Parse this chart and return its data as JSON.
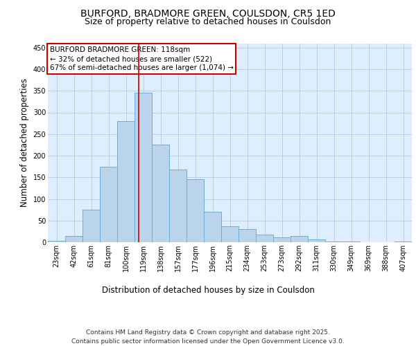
{
  "title_line1": "BURFORD, BRADMORE GREEN, COULSDON, CR5 1ED",
  "title_line2": "Size of property relative to detached houses in Coulsdon",
  "xlabel": "Distribution of detached houses by size in Coulsdon",
  "ylabel": "Number of detached properties",
  "categories": [
    "23sqm",
    "42sqm",
    "61sqm",
    "81sqm",
    "100sqm",
    "119sqm",
    "138sqm",
    "157sqm",
    "177sqm",
    "196sqm",
    "215sqm",
    "234sqm",
    "253sqm",
    "273sqm",
    "292sqm",
    "311sqm",
    "330sqm",
    "349sqm",
    "369sqm",
    "388sqm",
    "407sqm"
  ],
  "values": [
    3,
    14,
    76,
    175,
    280,
    345,
    225,
    168,
    145,
    70,
    37,
    30,
    17,
    11,
    14,
    6,
    1,
    1,
    0,
    0,
    1
  ],
  "bar_color": "#bad4ec",
  "bar_edge_color": "#6aaed6",
  "background_color": "#ffffff",
  "plot_bg_color": "#ddeeff",
  "grid_color": "#b8cfe8",
  "annotation_text": "BURFORD BRADMORE GREEN: 118sqm\n← 32% of detached houses are smaller (522)\n67% of semi-detached houses are larger (1,074) →",
  "annotation_box_color": "#ffffff",
  "annotation_box_edge_color": "#cc0000",
  "vline_color": "#cc0000",
  "vline_x": 4.74,
  "ylim": [
    0,
    460
  ],
  "yticks": [
    0,
    50,
    100,
    150,
    200,
    250,
    300,
    350,
    400,
    450
  ],
  "footnote": "Contains HM Land Registry data © Crown copyright and database right 2025.\nContains public sector information licensed under the Open Government Licence v3.0.",
  "title_fontsize": 10,
  "subtitle_fontsize": 9,
  "axis_label_fontsize": 8.5,
  "tick_fontsize": 7,
  "annotation_fontsize": 7.5,
  "footnote_fontsize": 6.5
}
